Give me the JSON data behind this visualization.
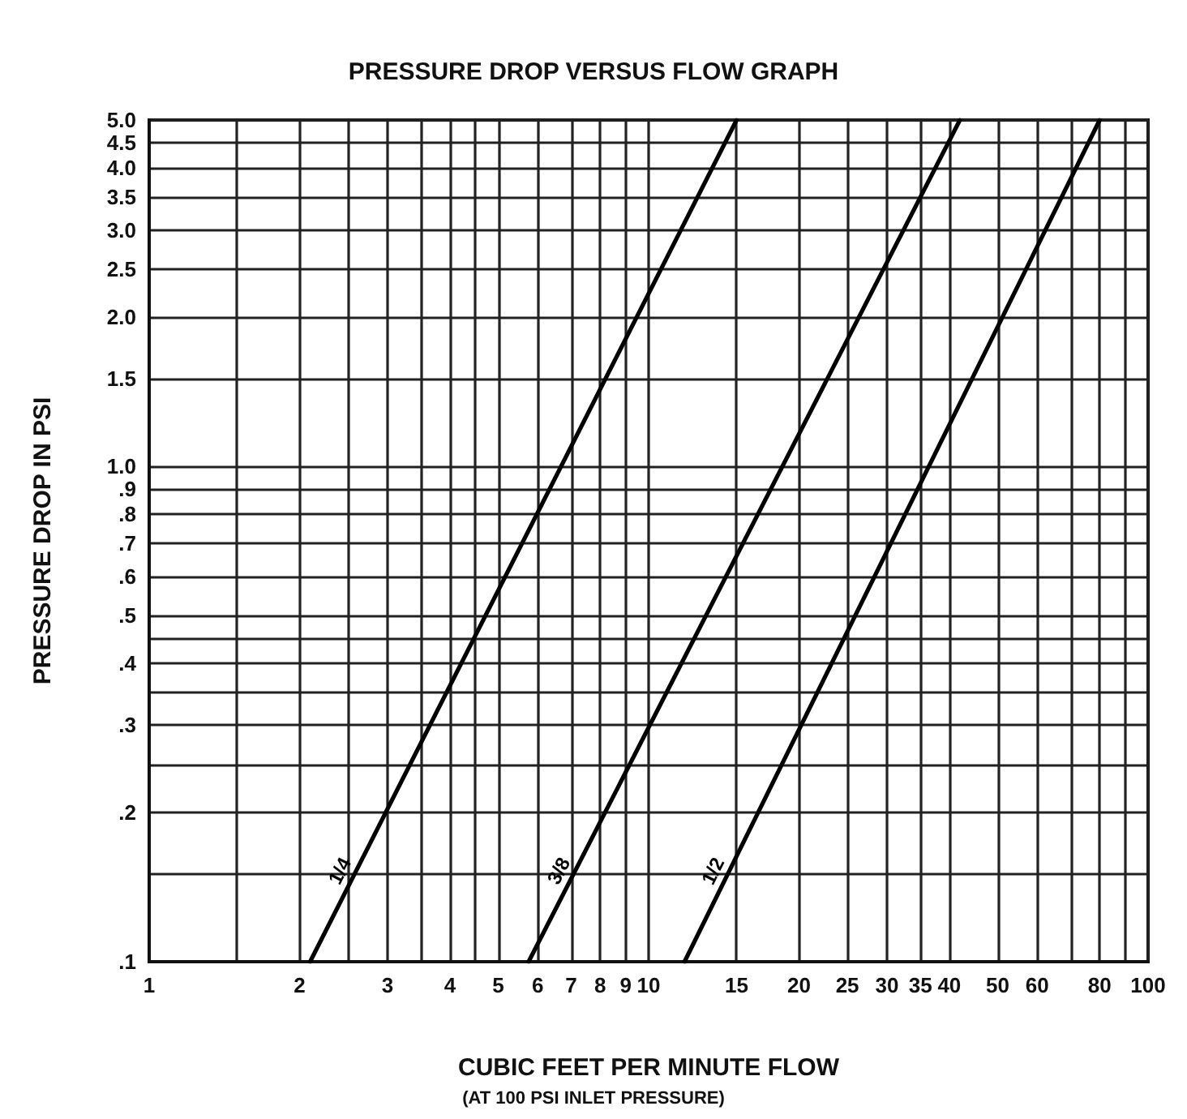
{
  "chart_data": {
    "type": "line",
    "title": "PRESSURE DROP VERSUS FLOW GRAPH",
    "xlabel": "CUBIC FEET PER MINUTE FLOW",
    "ylabel": "PRESSURE DROP IN PSI",
    "annotations": [
      "(AT 100 PSI INLET PRESSURE)"
    ],
    "series": [
      {
        "name": "1/4",
        "color": "#000000",
        "x": [
          2.1,
          15
        ],
        "values": [
          0.1,
          5
        ]
      },
      {
        "name": "3/8",
        "color": "#000000",
        "x": [
          5.75,
          42
        ],
        "values": [
          0.1,
          5
        ]
      },
      {
        "name": "1/2",
        "color": "#000000",
        "x": [
          11.8,
          80
        ],
        "values": [
          0.1,
          5
        ]
      }
    ],
    "xlim": [
      1,
      100
    ],
    "xticks": [
      1,
      {
        "value": 1.5,
        "label": null
      },
      2,
      {
        "value": 2.5,
        "label": null
      },
      3,
      {
        "value": 3.5,
        "label": null
      },
      4,
      {
        "value": 4.5,
        "label": null
      },
      5,
      6,
      7,
      8,
      9,
      10,
      15,
      20,
      25,
      30,
      35,
      40,
      50,
      60,
      {
        "value": 70,
        "label": null
      },
      80,
      {
        "value": 90,
        "label": null
      },
      100
    ],
    "ylim": [
      0.1,
      5
    ],
    "yticks": [
      {
        "value": 0.1,
        "label": ".1"
      },
      {
        "value": 0.15,
        "label": null
      },
      {
        "value": 0.2,
        "label": ".2"
      },
      {
        "value": 0.25,
        "label": null
      },
      {
        "value": 0.3,
        "label": ".3"
      },
      {
        "value": 0.35,
        "label": null
      },
      {
        "value": 0.4,
        "label": ".4"
      },
      {
        "value": 0.45,
        "label": null
      },
      {
        "value": 0.5,
        "label": ".5"
      },
      {
        "value": 0.6,
        "label": ".6"
      },
      {
        "value": 0.7,
        "label": ".7"
      },
      {
        "value": 0.8,
        "label": ".8"
      },
      {
        "value": 0.9,
        "label": ".9"
      },
      {
        "value": 1,
        "label": "1.0"
      },
      {
        "value": 1.5,
        "label": "1.5"
      },
      {
        "value": 2,
        "label": "2.0"
      },
      {
        "value": 2.5,
        "label": "2.5"
      },
      {
        "value": 3,
        "label": "3.0"
      },
      {
        "value": 3.5,
        "label": "3.5"
      },
      {
        "value": 4,
        "label": "4.0"
      },
      {
        "value": 4.5,
        "label": "4.5"
      },
      {
        "value": 5,
        "label": "5.0"
      }
    ],
    "log": "xy",
    "grid": true,
    "marker": "none",
    "line_style": "solid"
  }
}
